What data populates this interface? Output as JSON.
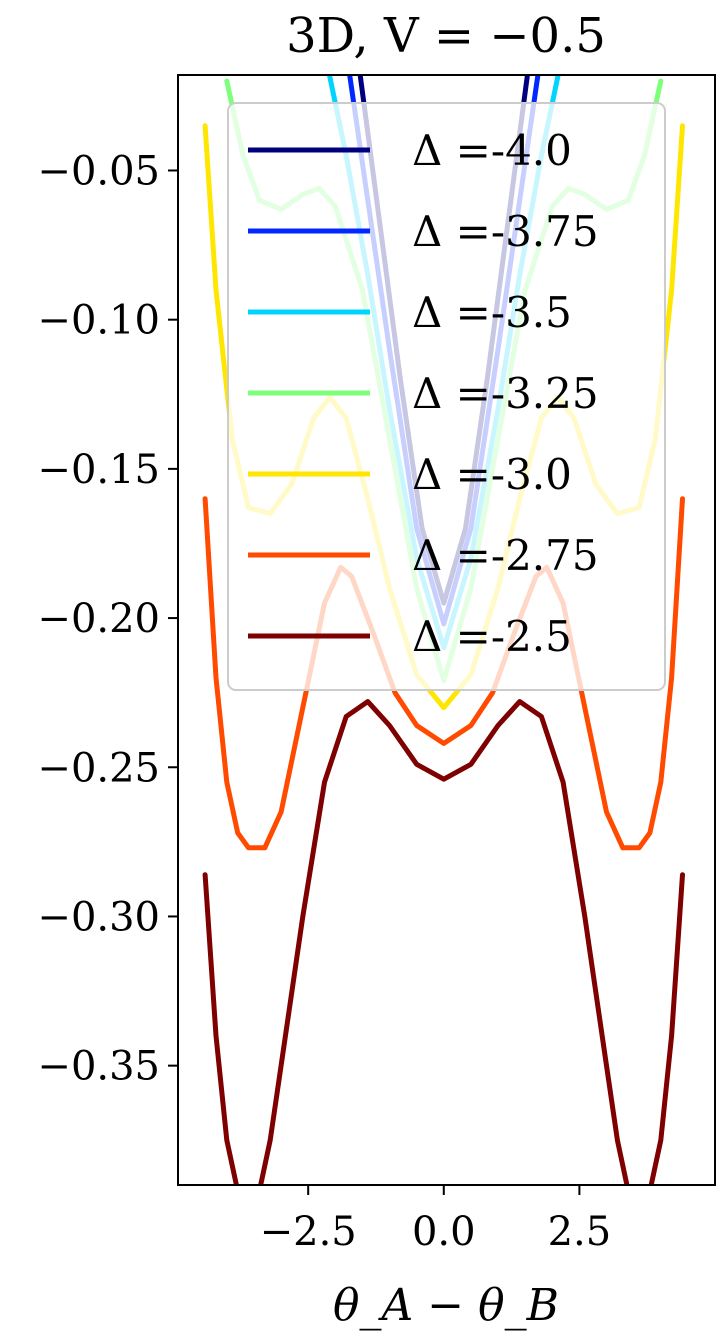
{
  "chart_data": {
    "type": "line",
    "title": "3D, V = −0.5",
    "xlabel": "θ_A − θ_B",
    "ylabel": "",
    "xlim": [
      -4.9,
      5.0
    ],
    "ylim": [
      -0.39,
      -0.018
    ],
    "x_ticks": [
      -2.5,
      0.0,
      2.5
    ],
    "x_tick_labels": [
      "−2.5",
      "0.0",
      "2.5"
    ],
    "y_ticks": [
      -0.05,
      -0.1,
      -0.15,
      -0.2,
      -0.25,
      -0.3,
      -0.35
    ],
    "y_tick_labels": [
      "−0.05",
      "−0.10",
      "−0.15",
      "−0.20",
      "−0.25",
      "−0.30",
      "−0.35"
    ],
    "grid": false,
    "legend_position": "top-right",
    "series": [
      {
        "name": "Δ =-4.0",
        "color": "#00007f",
        "x": [
          -1.6,
          -1.2,
          -0.8,
          -0.4,
          0.0,
          0.4,
          0.8,
          1.2,
          1.6
        ],
        "y": [
          -0.01,
          -0.065,
          -0.12,
          -0.17,
          -0.195,
          -0.17,
          -0.12,
          -0.065,
          -0.01
        ]
      },
      {
        "name": "Δ =-3.75",
        "color": "#0028ff",
        "x": [
          -1.8,
          -1.4,
          -1.0,
          -0.5,
          0.0,
          0.5,
          1.0,
          1.4,
          1.8
        ],
        "y": [
          -0.01,
          -0.06,
          -0.11,
          -0.17,
          -0.202,
          -0.17,
          -0.11,
          -0.06,
          -0.01
        ]
      },
      {
        "name": "Δ =-3.5",
        "color": "#00d4ff",
        "x": [
          -2.2,
          -1.8,
          -1.4,
          -1.0,
          -0.5,
          0.0,
          0.5,
          1.0,
          1.4,
          1.8,
          2.2
        ],
        "y": [
          -0.01,
          -0.045,
          -0.085,
          -0.13,
          -0.18,
          -0.21,
          -0.18,
          -0.13,
          -0.085,
          -0.045,
          -0.01
        ]
      },
      {
        "name": "Δ =-3.25",
        "color": "#7dff7a",
        "x": [
          -4.0,
          -3.7,
          -3.4,
          -3.0,
          -2.6,
          -2.3,
          -2.0,
          -1.5,
          -1.0,
          -0.5,
          0.0,
          0.5,
          1.0,
          1.5,
          2.0,
          2.3,
          2.6,
          3.0,
          3.4,
          3.7,
          4.0
        ],
        "y": [
          -0.02,
          -0.045,
          -0.06,
          -0.063,
          -0.058,
          -0.056,
          -0.062,
          -0.09,
          -0.14,
          -0.19,
          -0.221,
          -0.19,
          -0.14,
          -0.09,
          -0.062,
          -0.056,
          -0.058,
          -0.063,
          -0.06,
          -0.045,
          -0.02
        ]
      },
      {
        "name": "Δ =-3.0",
        "color": "#ffe600",
        "x": [
          -4.4,
          -4.2,
          -3.9,
          -3.6,
          -3.2,
          -2.8,
          -2.4,
          -2.1,
          -1.8,
          -1.4,
          -1.0,
          -0.5,
          0.0,
          0.5,
          1.0,
          1.4,
          1.8,
          2.1,
          2.4,
          2.8,
          3.2,
          3.6,
          3.9,
          4.2,
          4.4
        ],
        "y": [
          -0.035,
          -0.09,
          -0.14,
          -0.163,
          -0.165,
          -0.155,
          -0.133,
          -0.126,
          -0.133,
          -0.16,
          -0.19,
          -0.219,
          -0.23,
          -0.219,
          -0.19,
          -0.16,
          -0.133,
          -0.126,
          -0.133,
          -0.155,
          -0.165,
          -0.163,
          -0.14,
          -0.09,
          -0.035
        ]
      },
      {
        "name": "Δ =-2.75",
        "color": "#ff4a00",
        "x": [
          -4.4,
          -4.2,
          -4.0,
          -3.8,
          -3.6,
          -3.3,
          -3.0,
          -2.6,
          -2.2,
          -1.9,
          -1.7,
          -1.3,
          -0.9,
          -0.5,
          0.0,
          0.5,
          0.9,
          1.3,
          1.7,
          1.9,
          2.2,
          2.6,
          3.0,
          3.3,
          3.6,
          3.8,
          4.0,
          4.2,
          4.4
        ],
        "y": [
          -0.16,
          -0.22,
          -0.255,
          -0.272,
          -0.277,
          -0.277,
          -0.265,
          -0.23,
          -0.195,
          -0.183,
          -0.186,
          -0.205,
          -0.225,
          -0.236,
          -0.242,
          -0.236,
          -0.225,
          -0.205,
          -0.186,
          -0.183,
          -0.195,
          -0.23,
          -0.265,
          -0.277,
          -0.277,
          -0.272,
          -0.255,
          -0.22,
          -0.16
        ]
      },
      {
        "name": "Δ =-2.5",
        "color": "#7f0000",
        "x": [
          -4.4,
          -4.2,
          -4.0,
          -3.8,
          -3.6,
          -3.4,
          -3.2,
          -3.0,
          -2.6,
          -2.2,
          -1.8,
          -1.4,
          -1.0,
          -0.5,
          0.0,
          0.5,
          1.0,
          1.4,
          1.8,
          2.2,
          2.6,
          3.0,
          3.2,
          3.4,
          3.6,
          3.8,
          4.0,
          4.2,
          4.4
        ],
        "y": [
          -0.286,
          -0.34,
          -0.375,
          -0.392,
          -0.395,
          -0.392,
          -0.375,
          -0.35,
          -0.3,
          -0.255,
          -0.233,
          -0.228,
          -0.236,
          -0.249,
          -0.254,
          -0.249,
          -0.236,
          -0.228,
          -0.233,
          -0.255,
          -0.3,
          -0.35,
          -0.375,
          -0.392,
          -0.395,
          -0.392,
          -0.375,
          -0.34,
          -0.286
        ]
      }
    ]
  }
}
